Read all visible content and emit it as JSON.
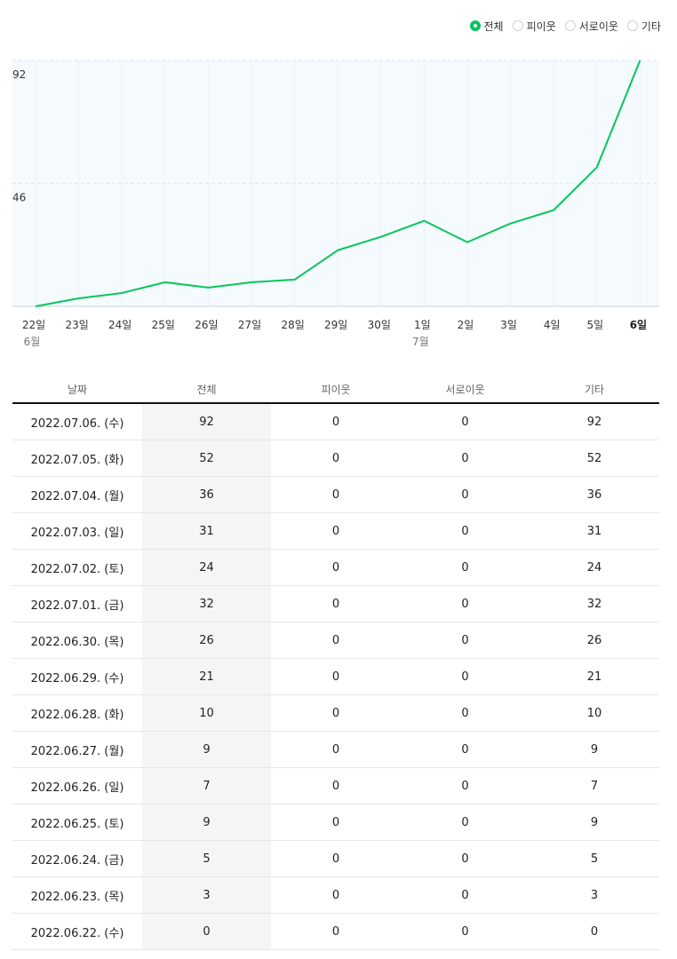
{
  "legend": [
    {
      "label": "전체",
      "checked": true
    },
    {
      "label": "피이웃",
      "checked": false
    },
    {
      "label": "서로이웃",
      "checked": false
    },
    {
      "label": "기타",
      "checked": false
    }
  ],
  "colors": {
    "line": "#03c75a",
    "plot_bg": "#f5faff",
    "grid": "#dde6ee"
  },
  "chart_data": {
    "type": "line",
    "y_ticks": [
      "92",
      "46"
    ],
    "ylim": [
      0,
      92
    ],
    "categories": [
      "22일",
      "23일",
      "24일",
      "25일",
      "26일",
      "27일",
      "28일",
      "29일",
      "30일",
      "1일",
      "2일",
      "3일",
      "4일",
      "5일",
      "6일"
    ],
    "month_labels": [
      {
        "index": 0,
        "label": "6월"
      },
      {
        "index": 9,
        "label": "7월"
      }
    ],
    "highlight_index": 14,
    "series": [
      {
        "name": "전체",
        "values": [
          0,
          3,
          5,
          9,
          7,
          9,
          10,
          21,
          26,
          32,
          24,
          31,
          36,
          52,
          92
        ]
      }
    ]
  },
  "table": {
    "headers": [
      "날짜",
      "전체",
      "피이웃",
      "서로이웃",
      "기타"
    ],
    "rows": [
      [
        "2022.07.06. (수)",
        "92",
        "0",
        "0",
        "92"
      ],
      [
        "2022.07.05. (화)",
        "52",
        "0",
        "0",
        "52"
      ],
      [
        "2022.07.04. (월)",
        "36",
        "0",
        "0",
        "36"
      ],
      [
        "2022.07.03. (일)",
        "31",
        "0",
        "0",
        "31"
      ],
      [
        "2022.07.02. (토)",
        "24",
        "0",
        "0",
        "24"
      ],
      [
        "2022.07.01. (금)",
        "32",
        "0",
        "0",
        "32"
      ],
      [
        "2022.06.30. (목)",
        "26",
        "0",
        "0",
        "26"
      ],
      [
        "2022.06.29. (수)",
        "21",
        "0",
        "0",
        "21"
      ],
      [
        "2022.06.28. (화)",
        "10",
        "0",
        "0",
        "10"
      ],
      [
        "2022.06.27. (월)",
        "9",
        "0",
        "0",
        "9"
      ],
      [
        "2022.06.26. (일)",
        "7",
        "0",
        "0",
        "7"
      ],
      [
        "2022.06.25. (토)",
        "9",
        "0",
        "0",
        "9"
      ],
      [
        "2022.06.24. (금)",
        "5",
        "0",
        "0",
        "5"
      ],
      [
        "2022.06.23. (목)",
        "3",
        "0",
        "0",
        "3"
      ],
      [
        "2022.06.22. (수)",
        "0",
        "0",
        "0",
        "0"
      ]
    ]
  }
}
